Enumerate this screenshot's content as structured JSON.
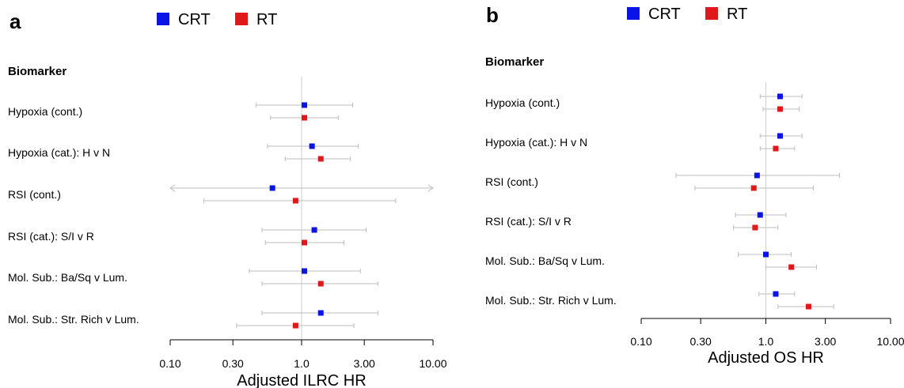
{
  "chart_data": [
    {
      "type": "scatter",
      "panel": "a",
      "header": "Biomarker",
      "xlabel": "Adjusted ILRC HR",
      "xscale": "log",
      "xlim": [
        0.1,
        10
      ],
      "xticks": [
        "0.10",
        "0.30",
        "1.0",
        "3.00",
        "10.00"
      ],
      "reference_line": 1.0,
      "legend": {
        "position": "top",
        "entries": [
          {
            "name": "CRT",
            "color": "#0a14e6"
          },
          {
            "name": "RT",
            "color": "#e01818"
          }
        ]
      },
      "rows": [
        "Hypoxia (cont.)",
        "Hypoxia (cat.): H v N",
        "RSI (cont.)",
        "RSI (cat.): S/I v R",
        "Mol. Sub.: Ba/Sq v Lum.",
        "Mol. Sub.: Str. Rich v Lum."
      ],
      "series": [
        {
          "name": "CRT",
          "color": "#0a14e6",
          "points": [
            {
              "hr": 1.05,
              "lo": 0.45,
              "hi": 2.45
            },
            {
              "hr": 1.2,
              "lo": 0.55,
              "hi": 2.7
            },
            {
              "hr": 0.6,
              "lo": 0.1,
              "hi": 10,
              "arrows": true
            },
            {
              "hr": 1.25,
              "lo": 0.5,
              "hi": 3.1
            },
            {
              "hr": 1.05,
              "lo": 0.4,
              "hi": 2.8
            },
            {
              "hr": 1.4,
              "lo": 0.5,
              "hi": 3.8
            }
          ]
        },
        {
          "name": "RT",
          "color": "#e01818",
          "points": [
            {
              "hr": 1.05,
              "lo": 0.58,
              "hi": 1.9
            },
            {
              "hr": 1.4,
              "lo": 0.75,
              "hi": 2.35
            },
            {
              "hr": 0.9,
              "lo": 0.18,
              "hi": 5.2
            },
            {
              "hr": 1.05,
              "lo": 0.53,
              "hi": 2.1
            },
            {
              "hr": 1.4,
              "lo": 0.5,
              "hi": 3.8
            },
            {
              "hr": 0.9,
              "lo": 0.32,
              "hi": 2.5
            }
          ]
        }
      ]
    },
    {
      "type": "scatter",
      "panel": "b",
      "header": "Biomarker",
      "xlabel": "Adjusted OS HR",
      "xscale": "log",
      "xlim": [
        0.1,
        10
      ],
      "xticks": [
        "0.10",
        "0.30",
        "1.0",
        "3.00",
        "10.00"
      ],
      "reference_line": 1.0,
      "legend": {
        "position": "top",
        "entries": [
          {
            "name": "CRT",
            "color": "#0a14e6"
          },
          {
            "name": "RT",
            "color": "#e01818"
          }
        ]
      },
      "rows": [
        "Hypoxia (cont.)",
        "Hypoxia (cat.): H v N",
        "RSI (cont.)",
        "RSI (cat.): S/I v R",
        "Mol. Sub.: Ba/Sq v Lum.",
        "Mol. Sub.: Str. Rich v Lum."
      ],
      "series": [
        {
          "name": "CRT",
          "color": "#0a14e6",
          "points": [
            {
              "hr": 1.3,
              "lo": 0.9,
              "hi": 1.95
            },
            {
              "hr": 1.3,
              "lo": 0.9,
              "hi": 1.95
            },
            {
              "hr": 0.85,
              "lo": 0.19,
              "hi": 3.9
            },
            {
              "hr": 0.9,
              "lo": 0.57,
              "hi": 1.45
            },
            {
              "hr": 1.0,
              "lo": 0.6,
              "hi": 1.6
            },
            {
              "hr": 1.2,
              "lo": 0.88,
              "hi": 1.7
            }
          ]
        },
        {
          "name": "RT",
          "color": "#e01818",
          "points": [
            {
              "hr": 1.3,
              "lo": 0.95,
              "hi": 1.85
            },
            {
              "hr": 1.2,
              "lo": 0.9,
              "hi": 1.7
            },
            {
              "hr": 0.8,
              "lo": 0.27,
              "hi": 2.4
            },
            {
              "hr": 0.82,
              "lo": 0.55,
              "hi": 1.25
            },
            {
              "hr": 1.6,
              "lo": 1.0,
              "hi": 2.55
            },
            {
              "hr": 2.2,
              "lo": 1.25,
              "hi": 3.5
            }
          ]
        }
      ]
    }
  ]
}
